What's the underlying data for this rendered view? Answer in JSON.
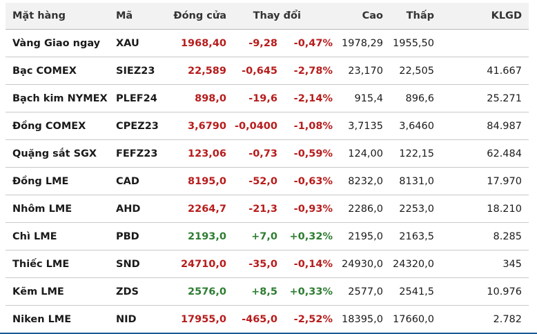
{
  "headers": {
    "name": "Mặt hàng",
    "code": "Mã",
    "close": "Đóng cửa",
    "change": "Thay đổi",
    "high": "Cao",
    "low": "Thấp",
    "volume": "KLGD"
  },
  "colors": {
    "down": "#b71c1c",
    "up": "#2e7d32"
  },
  "rows": [
    {
      "name": "Vàng Giao ngay",
      "code": "XAU",
      "close": "1968,40",
      "change": "-9,28",
      "pct": "-0,47%",
      "high": "1978,29",
      "low": "1955,50",
      "volume": "",
      "dir": "down"
    },
    {
      "name": "Bạc COMEX",
      "code": "SIEZ23",
      "close": "22,589",
      "change": "-0,645",
      "pct": "-2,78%",
      "high": "23,170",
      "low": "22,505",
      "volume": "41.667",
      "dir": "down"
    },
    {
      "name": "Bạch kim NYMEX",
      "code": "PLEF24",
      "close": "898,0",
      "change": "-19,6",
      "pct": "-2,14%",
      "high": "915,4",
      "low": "896,6",
      "volume": "25.271",
      "dir": "down"
    },
    {
      "name": "Đồng COMEX",
      "code": "CPEZ23",
      "close": "3,6790",
      "change": "-0,0400",
      "pct": "-1,08%",
      "high": "3,7135",
      "low": "3,6460",
      "volume": "84.987",
      "dir": "down"
    },
    {
      "name": "Quặng sắt SGX",
      "code": "FEFZ23",
      "close": "123,06",
      "change": "-0,73",
      "pct": "-0,59%",
      "high": "124,00",
      "low": "122,15",
      "volume": "62.484",
      "dir": "down"
    },
    {
      "name": "Đồng LME",
      "code": "CAD",
      "close": "8195,0",
      "change": "-52,0",
      "pct": "-0,63%",
      "high": "8232,0",
      "low": "8131,0",
      "volume": "17.970",
      "dir": "down"
    },
    {
      "name": "Nhôm LME",
      "code": "AHD",
      "close": "2264,7",
      "change": "-21,3",
      "pct": "-0,93%",
      "high": "2286,0",
      "low": "2253,0",
      "volume": "18.210",
      "dir": "down"
    },
    {
      "name": "Chì LME",
      "code": "PBD",
      "close": "2193,0",
      "change": "+7,0",
      "pct": "+0,32%",
      "high": "2195,0",
      "low": "2163,5",
      "volume": "8.285",
      "dir": "up"
    },
    {
      "name": "Thiếc LME",
      "code": "SND",
      "close": "24710,0",
      "change": "-35,0",
      "pct": "-0,14%",
      "high": "24930,0",
      "low": "24320,0",
      "volume": "345",
      "dir": "down"
    },
    {
      "name": "Kẽm LME",
      "code": "ZDS",
      "close": "2576,0",
      "change": "+8,5",
      "pct": "+0,33%",
      "high": "2577,0",
      "low": "2541,5",
      "volume": "10.976",
      "dir": "up"
    },
    {
      "name": "Niken LME",
      "code": "NID",
      "close": "17955,0",
      "change": "-465,0",
      "pct": "-2,52%",
      "high": "18395,0",
      "low": "17660,0",
      "volume": "2.782",
      "dir": "down"
    }
  ]
}
